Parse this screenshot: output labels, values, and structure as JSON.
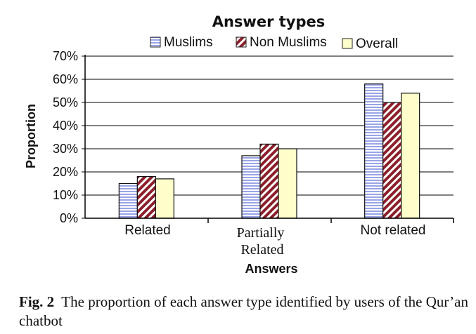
{
  "chart_data": {
    "type": "bar",
    "title": "Answer types",
    "xlabel": "Answers",
    "ylabel": "Proportion",
    "categories": [
      "Related",
      "Partially Related",
      "Not related"
    ],
    "ylim": [
      0,
      70
    ],
    "yticks": [
      "0%",
      "10%",
      "20%",
      "30%",
      "40%",
      "50%",
      "60%",
      "70%"
    ],
    "grid": true,
    "legend_position": "top",
    "series": [
      {
        "name": "Muslims",
        "values": [
          15,
          27,
          58
        ],
        "color": "#c8cff0",
        "pattern": "horizontal-stripes-blue"
      },
      {
        "name": "Non Muslims",
        "values": [
          18,
          32,
          50
        ],
        "color": "#8b1f2a",
        "pattern": "diagonal-stripes-red"
      },
      {
        "name": "Overall",
        "values": [
          17,
          30,
          54
        ],
        "color": "#ffffcc",
        "pattern": "solid-light-yellow"
      }
    ]
  },
  "caption": {
    "label": "Fig. 2",
    "text": "The proportion of each answer type identified by users of the Qur’an chatbot"
  }
}
